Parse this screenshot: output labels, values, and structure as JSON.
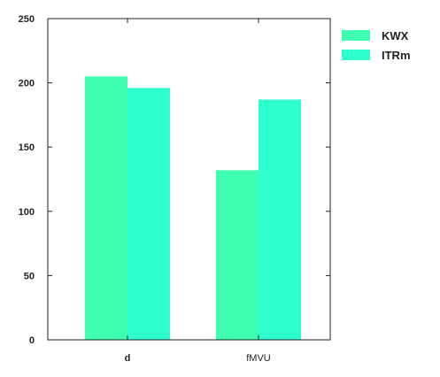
{
  "chart_data": {
    "type": "bar",
    "categories": [
      "d",
      "fMVU"
    ],
    "series": [
      {
        "name": "KWX",
        "values": [
          205,
          132
        ],
        "color": "#3effb0"
      },
      {
        "name": "ITRm",
        "values": [
          196,
          187
        ],
        "color": "#2effcf"
      }
    ],
    "ylim": [
      0,
      250
    ],
    "yticks": [
      0,
      50,
      100,
      150,
      200,
      250
    ],
    "xlabel": "",
    "ylabel": "",
    "title": "",
    "grid": false,
    "legend_position": "outside-top-right"
  }
}
